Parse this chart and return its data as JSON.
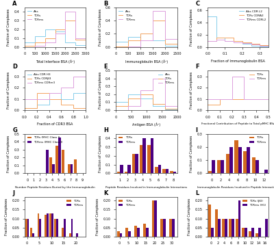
{
  "colors": {
    "abs": "#87CEEB",
    "tcrs": "#F4A460",
    "tcrms": "#DDA0DD",
    "tcrs_bar": "#D2691E",
    "tcrms_bar": "#4B0082"
  },
  "A": {
    "xlabel": "Total Interface BSA (Å²)",
    "ylabel": "Fraction of Complexes",
    "legend": [
      "Abs",
      "TCRs",
      "TCRms"
    ],
    "bins": [
      0,
      500,
      1000,
      1500,
      2000,
      2500,
      3000
    ],
    "abs_vals": [
      0.05,
      0.12,
      0.2,
      0.18,
      0.05,
      0.02
    ],
    "tcrs_vals": [
      0.01,
      0.05,
      0.1,
      0.2,
      0.3,
      0.08
    ],
    "tcrms_vals": [
      0.0,
      0.01,
      0.05,
      0.15,
      0.4,
      0.1
    ]
  },
  "B": {
    "xlabel": "Immunoglobulin BSA (Å²)",
    "ylabel": "Fraction of Complexes",
    "legend": [
      "Abs",
      "TCRs",
      "TCRms"
    ],
    "bins": [
      0,
      500,
      1000,
      1500,
      2000,
      2500
    ],
    "abs_vals": [
      0.08,
      0.15,
      0.2,
      0.1,
      0.02
    ],
    "tcrs_vals": [
      0.01,
      0.1,
      0.2,
      0.4,
      0.05
    ],
    "tcrms_vals": [
      0.0,
      0.01,
      0.1,
      0.55,
      0.12
    ]
  },
  "C": {
    "xlabel": "Fraction of Immunoglobulin BSA",
    "ylabel": "Fraction of Complexes",
    "legend": [
      "Abs CDR L2",
      "TCRs CDRA2",
      "TCRms CDRL2"
    ],
    "bins": [
      0.0,
      0.05,
      0.1,
      0.15,
      0.2,
      0.25,
      0.3,
      0.35
    ],
    "abs_vals": [
      0.5,
      0.15,
      0.1,
      0.1,
      0.05,
      0.02,
      0.01
    ],
    "tcrs_vals": [
      0.1,
      0.15,
      0.15,
      0.1,
      0.08,
      0.05,
      0.03
    ],
    "tcrms_vals": [
      0.1,
      0.12,
      0.1,
      0.08,
      0.06,
      0.04,
      0.02
    ]
  },
  "D": {
    "xlabel": "Fraction of CDR3 BSA",
    "ylabel": "Fraction of Complexes",
    "legend": [
      "Abs CDR H3",
      "TCRs CDRβ3",
      "TCRms CDRm3"
    ],
    "bins": [
      0.0,
      0.2,
      0.4,
      0.6,
      0.8,
      1.0
    ],
    "abs_vals": [
      0.02,
      0.05,
      0.15,
      0.1,
      0.15
    ],
    "tcrs_vals": [
      0.02,
      0.15,
      0.1,
      0.05,
      0.02
    ],
    "tcrms_vals": [
      0.1,
      0.1,
      0.15,
      0.2,
      0.3
    ]
  },
  "E": {
    "xlabel": "Antigen BSA (Å²)",
    "ylabel": "Fraction of Complexes",
    "legend": [
      "Abs",
      "TCRs",
      "TCRms"
    ],
    "bins": [
      0,
      400,
      800,
      1200,
      1600,
      2000
    ],
    "abs_vals": [
      0.1,
      0.2,
      0.15,
      0.05,
      0.01
    ],
    "tcrs_vals": [
      0.05,
      0.15,
      0.2,
      0.08,
      0.02
    ],
    "tcrms_vals": [
      0.0,
      0.05,
      0.25,
      0.4,
      0.05
    ]
  },
  "F": {
    "xlabel": "Fractional Contribution of Peptide to Total pMHC BSA",
    "ylabel": "Fraction of Complexes",
    "legend": [
      "TCRs",
      "TCRms"
    ],
    "bins": [
      0.0,
      0.1,
      0.2,
      0.3,
      0.4,
      0.5
    ],
    "tcrs_vals": [
      0.05,
      0.1,
      0.1,
      0.1,
      0.1
    ],
    "tcrms_vals": [
      0.1,
      0.1,
      0.3,
      0.1,
      0.1
    ]
  },
  "G": {
    "xlabel": "Number Peptide Residues Buried by the Immunoglobulin",
    "ylabel": "Fraction of Complexes",
    "legend": [
      "TCRs (MHC Class I)",
      "TCRms (MHC Class I)"
    ],
    "x": [
      0,
      1,
      2,
      3,
      4,
      5,
      6,
      7,
      8,
      9
    ],
    "tcrs_vals": [
      0.0,
      0.0,
      0.0,
      0.0,
      0.2,
      0.35,
      0.3,
      0.12,
      0.18,
      0.0
    ],
    "tcrms_vals": [
      0.0,
      0.0,
      0.0,
      0.3,
      0.12,
      0.45,
      0.0,
      0.12,
      0.0,
      0.0
    ]
  },
  "H": {
    "xlabel": "Peptide Residues Involved in Immunoglobulin Interactions",
    "ylabel": "Fraction of Complexes",
    "legend": [
      "TCRs",
      "TCRms"
    ],
    "x": [
      1,
      2,
      3,
      4,
      5,
      6,
      7,
      8
    ],
    "tcrs_vals": [
      0.02,
      0.02,
      0.22,
      0.32,
      0.32,
      0.07,
      0.05,
      0.03
    ],
    "tcrms_vals": [
      0.1,
      0.1,
      0.22,
      0.4,
      0.4,
      0.1,
      0.05,
      0.02
    ]
  },
  "I": {
    "xlabel": "Immunoglobulin Residues Involved in Peptide Interactions",
    "ylabel": "Fraction of Complexes",
    "legend": [
      "TCRs",
      "TCRms"
    ],
    "x": [
      0,
      2,
      4,
      6,
      8,
      10,
      12
    ],
    "tcrs_vals": [
      0.02,
      0.1,
      0.15,
      0.25,
      0.17,
      0.12,
      0.0
    ],
    "tcrms_vals": [
      0.1,
      0.1,
      0.2,
      0.2,
      0.2,
      0.1,
      0.03
    ]
  },
  "J": {
    "xlabel": "Number of Interactions to Peptide Residues",
    "ylabel": "Fraction of Complexes",
    "legend": [
      "TCRs",
      "TCRms"
    ],
    "x": [
      0,
      2,
      5,
      8,
      10,
      12,
      15,
      18,
      20,
      22
    ],
    "tcrs_vals": [
      0.1,
      0.05,
      0.13,
      0.12,
      0.13,
      0.1,
      0.05,
      0.02,
      0.0,
      0.0
    ],
    "tcrms_vals": [
      0.1,
      0.02,
      0.1,
      0.13,
      0.13,
      0.1,
      0.1,
      0.1,
      0.02,
      0.0
    ]
  },
  "K": {
    "xlabel": "Number of Interactions to MHC",
    "ylabel": "Fraction of Complexes",
    "legend": [
      "TCRs",
      "TCRms"
    ],
    "x": [
      0,
      5,
      10,
      15,
      20,
      25,
      30
    ],
    "tcrs_vals": [
      0.03,
      0.05,
      0.06,
      0.07,
      0.2,
      0.1,
      0.1
    ],
    "tcrms_vals": [
      0.02,
      0.03,
      0.05,
      0.05,
      0.2,
      0.1,
      0.1
    ]
  },
  "L": {
    "xlabel": "Number of Interactions to MHC",
    "ylabel": "Fraction of Complexes",
    "legend": [
      "TCRs (β0)",
      "TCRms (H1)"
    ],
    "x": [
      0,
      2,
      4,
      6,
      8,
      10,
      12,
      14,
      16
    ],
    "tcrs_vals": [
      0.18,
      0.15,
      0.1,
      0.1,
      0.1,
      0.05,
      0.03,
      0.02,
      0.0
    ],
    "tcrms_vals": [
      0.05,
      0.1,
      0.1,
      0.1,
      0.2,
      0.05,
      0.05,
      0.05,
      0.1
    ]
  }
}
